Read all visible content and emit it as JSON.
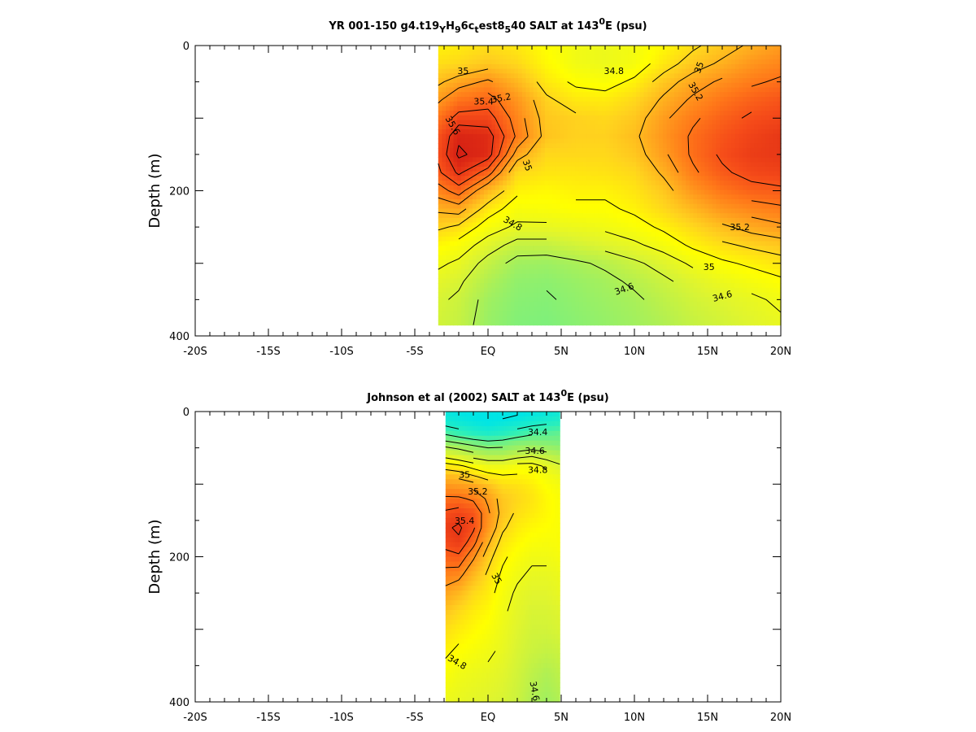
{
  "chart_data": [
    {
      "type": "heatmap",
      "title": {
        "parts": [
          {
            "t": "YR 001-150 g4.t19",
            "s": "n"
          },
          {
            "t": "Y",
            "s": "sub"
          },
          {
            "t": "H",
            "s": "n"
          },
          {
            "t": "9",
            "s": "sub"
          },
          {
            "t": "6c",
            "s": "n"
          },
          {
            "t": "t",
            "s": "sub"
          },
          {
            "t": "est8",
            "s": "n"
          },
          {
            "t": "5",
            "s": "sub"
          },
          {
            "t": "40 SALT at 143",
            "s": "n"
          },
          {
            "t": "0",
            "s": "sup"
          },
          {
            "t": "E (psu)",
            "s": "n"
          }
        ]
      },
      "ylabel": "Depth (m)",
      "xlim": [
        -20,
        20
      ],
      "ylim": [
        0,
        400
      ],
      "y_reversed": true,
      "x_ticklabels": [
        "-20S",
        "-15S",
        "-10S",
        "-5S",
        "EQ",
        "5N",
        "10N",
        "15N",
        "20N"
      ],
      "x_tickvalues": [
        -20,
        -15,
        -10,
        -5,
        0,
        5,
        10,
        15,
        20
      ],
      "y_ticklabels": [
        "0",
        "200",
        "400"
      ],
      "y_tickvalues": [
        0,
        200,
        400
      ],
      "data_extent": {
        "lat": [
          -3.4,
          20
        ],
        "depth": [
          0,
          385
        ]
      },
      "grid": false,
      "colormap": [
        "#00e5e5",
        "#33f0b4",
        "#7ff07a",
        "#b4f050",
        "#e1f52d",
        "#ffff00",
        "#ffd21e",
        "#ffa51e",
        "#ff7819",
        "#f54b19",
        "#dc2814",
        "#c81414"
      ],
      "color_range": [
        34.2,
        35.7
      ],
      "grid_values": {
        "lat": [
          -3.4,
          -2,
          0,
          2,
          4,
          6,
          8,
          10,
          12,
          14,
          16,
          18,
          20
        ],
        "depth": [
          0,
          25,
          50,
          75,
          100,
          125,
          150,
          175,
          200,
          225,
          250,
          275,
          300,
          325,
          350,
          385
        ],
        "salt": [
          [
            34.92,
            34.94,
            34.98,
            34.95,
            34.88,
            34.82,
            34.8,
            34.83,
            34.9,
            34.98,
            35.05,
            35.12,
            35.18
          ],
          [
            34.98,
            35.0,
            35.05,
            35.0,
            34.9,
            34.82,
            34.8,
            34.84,
            34.95,
            35.05,
            35.12,
            35.2,
            35.25
          ],
          [
            35.08,
            35.15,
            35.22,
            35.1,
            34.95,
            34.88,
            34.86,
            34.92,
            35.05,
            35.15,
            35.22,
            35.28,
            35.32
          ],
          [
            35.18,
            35.3,
            35.35,
            35.2,
            35.02,
            34.95,
            34.94,
            35.0,
            35.12,
            35.22,
            35.3,
            35.36,
            35.4
          ],
          [
            35.3,
            35.45,
            35.45,
            35.25,
            35.05,
            35.02,
            35.0,
            35.05,
            35.18,
            35.28,
            35.36,
            35.42,
            35.45
          ],
          [
            35.4,
            35.58,
            35.55,
            35.28,
            35.06,
            35.02,
            35.02,
            35.08,
            35.2,
            35.32,
            35.4,
            35.46,
            35.5
          ],
          [
            35.42,
            35.62,
            35.55,
            35.15,
            35.0,
            35.0,
            35.0,
            35.05,
            35.18,
            35.32,
            35.42,
            35.48,
            35.5
          ],
          [
            35.38,
            35.52,
            35.35,
            35.0,
            34.96,
            34.96,
            34.97,
            35.0,
            35.12,
            35.28,
            35.38,
            35.44,
            35.46
          ],
          [
            35.25,
            35.35,
            35.1,
            34.92,
            34.9,
            34.92,
            34.92,
            34.96,
            35.05,
            35.2,
            35.3,
            35.36,
            35.38
          ],
          [
            35.12,
            35.15,
            34.95,
            34.85,
            34.86,
            34.88,
            34.88,
            34.92,
            35.0,
            35.1,
            35.2,
            35.25,
            35.28
          ],
          [
            35.02,
            34.98,
            34.85,
            34.78,
            34.78,
            34.8,
            34.82,
            34.86,
            34.92,
            35.0,
            35.08,
            35.14,
            35.18
          ],
          [
            34.9,
            34.86,
            34.75,
            34.66,
            34.66,
            34.7,
            34.74,
            34.78,
            34.84,
            34.92,
            34.98,
            35.02,
            35.05
          ],
          [
            34.82,
            34.78,
            34.66,
            34.56,
            34.55,
            34.58,
            34.62,
            34.68,
            34.74,
            34.82,
            34.88,
            34.92,
            34.96
          ],
          [
            34.76,
            34.72,
            34.6,
            34.52,
            34.51,
            34.54,
            34.57,
            34.62,
            34.68,
            34.74,
            34.8,
            34.84,
            34.88
          ],
          [
            34.72,
            34.68,
            34.56,
            34.5,
            34.49,
            34.52,
            34.55,
            34.58,
            34.64,
            34.7,
            34.74,
            34.78,
            34.82
          ],
          [
            34.7,
            34.66,
            34.54,
            34.48,
            34.47,
            34.5,
            34.53,
            34.56,
            34.6,
            34.66,
            34.7,
            34.74,
            34.78
          ]
        ]
      },
      "contour_labels": [
        {
          "text": "35",
          "lat": -1.7,
          "depth": 35,
          "angle": 0
        },
        {
          "text": "35.4",
          "lat": -0.3,
          "depth": 77,
          "angle": 0
        },
        {
          "text": "35.2",
          "lat": 0.9,
          "depth": 72,
          "angle": -10
        },
        {
          "text": "35.6",
          "lat": -2.4,
          "depth": 110,
          "angle": 60
        },
        {
          "text": "35",
          "lat": 2.7,
          "depth": 165,
          "angle": 70
        },
        {
          "text": "34.8",
          "lat": 1.7,
          "depth": 245,
          "angle": 30
        },
        {
          "text": "34.8",
          "lat": 8.6,
          "depth": 35,
          "angle": 0
        },
        {
          "text": "35",
          "lat": 14.4,
          "depth": 30,
          "angle": -70
        },
        {
          "text": "35.2",
          "lat": 14.2,
          "depth": 63,
          "angle": 60
        },
        {
          "text": "35.2",
          "lat": 17.2,
          "depth": 250,
          "angle": 0
        },
        {
          "text": "35",
          "lat": 15.1,
          "depth": 305,
          "angle": 0
        },
        {
          "text": "34.6",
          "lat": 9.3,
          "depth": 335,
          "angle": -20
        },
        {
          "text": "34.6",
          "lat": 16.0,
          "depth": 345,
          "angle": -15
        }
      ]
    },
    {
      "type": "heatmap",
      "title": {
        "parts": [
          {
            "t": "Johnson et al (2002) SALT at 143",
            "s": "n"
          },
          {
            "t": "0",
            "s": "sup"
          },
          {
            "t": "E (psu)",
            "s": "n"
          }
        ]
      },
      "ylabel": "Depth (m)",
      "xlim": [
        -20,
        20
      ],
      "ylim": [
        0,
        400
      ],
      "y_reversed": true,
      "x_ticklabels": [
        "-20S",
        "-15S",
        "-10S",
        "-5S",
        "EQ",
        "5N",
        "10N",
        "15N",
        "20N"
      ],
      "x_tickvalues": [
        -20,
        -15,
        -10,
        -5,
        0,
        5,
        10,
        15,
        20
      ],
      "y_ticklabels": [
        "0",
        "200",
        "400"
      ],
      "y_tickvalues": [
        0,
        200,
        400
      ],
      "data_extent": {
        "lat": [
          -2.9,
          4.9
        ],
        "depth": [
          0,
          400
        ]
      },
      "grid": false,
      "colormap": [
        "#00e5e5",
        "#33f0b4",
        "#7ff07a",
        "#b4f050",
        "#e1f52d",
        "#ffff00",
        "#ffd21e",
        "#ffa51e",
        "#ff7819",
        "#f54b19",
        "#dc2814",
        "#c81414"
      ],
      "color_range": [
        34.2,
        35.7
      ],
      "grid_values": {
        "lat": [
          -2.9,
          -2,
          -1,
          0,
          1,
          2,
          3,
          4,
          4.9
        ],
        "depth": [
          0,
          15,
          30,
          45,
          60,
          75,
          90,
          105,
          120,
          140,
          160,
          180,
          200,
          225,
          250,
          275,
          300,
          330,
          360,
          400
        ],
        "salt": [
          [
            34.22,
            34.2,
            34.18,
            34.16,
            34.16,
            34.18,
            34.2,
            34.22,
            34.24
          ],
          [
            34.26,
            34.24,
            34.22,
            34.2,
            34.22,
            34.24,
            34.26,
            34.28,
            34.3
          ],
          [
            34.38,
            34.34,
            34.3,
            34.28,
            34.3,
            34.34,
            34.38,
            34.4,
            34.42
          ],
          [
            34.55,
            34.52,
            34.48,
            34.45,
            34.46,
            34.5,
            34.52,
            34.5,
            34.48
          ],
          [
            34.75,
            34.7,
            34.64,
            34.6,
            34.6,
            34.65,
            34.68,
            34.64,
            34.6
          ],
          [
            34.95,
            34.92,
            34.86,
            34.8,
            34.8,
            34.84,
            34.84,
            34.78,
            34.72
          ],
          [
            35.1,
            35.08,
            35.02,
            34.96,
            34.92,
            34.92,
            34.9,
            34.84,
            34.8
          ],
          [
            35.22,
            35.2,
            35.18,
            35.1,
            35.0,
            34.98,
            34.94,
            34.88,
            34.84
          ],
          [
            35.32,
            35.32,
            35.28,
            35.18,
            35.05,
            35.0,
            34.96,
            34.9,
            34.86
          ],
          [
            35.42,
            35.45,
            35.4,
            35.22,
            35.06,
            34.98,
            34.94,
            34.9,
            34.86
          ],
          [
            35.48,
            35.52,
            35.42,
            35.2,
            35.02,
            34.94,
            34.9,
            34.88,
            34.86
          ],
          [
            35.44,
            35.48,
            35.34,
            35.12,
            34.96,
            34.9,
            34.86,
            34.85,
            34.86
          ],
          [
            35.36,
            35.38,
            35.22,
            35.04,
            34.92,
            34.86,
            34.82,
            34.82,
            34.84
          ],
          [
            35.26,
            35.24,
            35.1,
            34.98,
            34.88,
            34.82,
            34.78,
            34.78,
            34.8
          ],
          [
            35.16,
            35.1,
            35.0,
            34.94,
            34.85,
            34.78,
            34.75,
            34.75,
            34.78
          ],
          [
            35.06,
            35.0,
            34.94,
            34.9,
            34.82,
            34.76,
            34.72,
            34.72,
            34.74
          ],
          [
            34.98,
            34.94,
            34.9,
            34.86,
            34.8,
            34.74,
            34.7,
            34.7,
            34.72
          ],
          [
            34.92,
            34.88,
            34.85,
            34.82,
            34.78,
            34.72,
            34.68,
            34.66,
            34.68
          ],
          [
            34.86,
            34.82,
            34.8,
            34.78,
            34.75,
            34.7,
            34.64,
            34.6,
            34.64
          ],
          [
            34.8,
            34.78,
            34.76,
            34.74,
            34.72,
            34.68,
            34.6,
            34.56,
            34.6
          ]
        ]
      },
      "contour_labels": [
        {
          "text": "34.4",
          "lat": 3.4,
          "depth": 28,
          "angle": 0
        },
        {
          "text": "34.6",
          "lat": 3.2,
          "depth": 54,
          "angle": 0
        },
        {
          "text": "34.8",
          "lat": 3.4,
          "depth": 80,
          "angle": 0
        },
        {
          "text": "35",
          "lat": -1.6,
          "depth": 87,
          "angle": 0
        },
        {
          "text": "35.2",
          "lat": -0.7,
          "depth": 110,
          "angle": 0
        },
        {
          "text": "35.4",
          "lat": -1.6,
          "depth": 150,
          "angle": 0
        },
        {
          "text": "35",
          "lat": 0.6,
          "depth": 230,
          "angle": 60
        },
        {
          "text": "34.8",
          "lat": -2.1,
          "depth": 345,
          "angle": 30
        },
        {
          "text": "34.6",
          "lat": 3.2,
          "depth": 385,
          "angle": 80
        }
      ]
    }
  ]
}
